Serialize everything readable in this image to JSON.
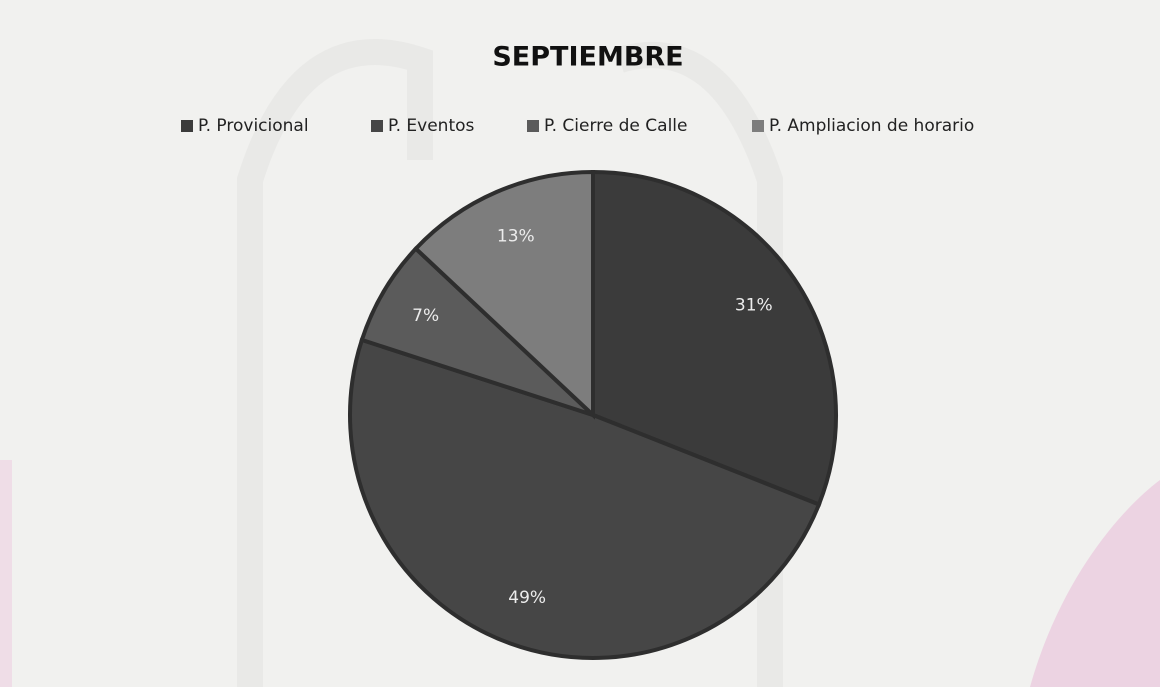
{
  "chart_data": {
    "type": "pie",
    "title": "SEPTIEMBRE",
    "categories": [
      "P. Provicional",
      "P. Eventos",
      "P. Cierre de Calle",
      "P. Ampliacion de horario"
    ],
    "values": [
      31,
      49,
      7,
      13
    ],
    "value_labels": [
      "31%",
      "49%",
      "7%",
      "13%"
    ],
    "colors": [
      "#3b3b3b",
      "#464646",
      "#5b5b5b",
      "#7d7d7d"
    ],
    "legend": "top"
  }
}
